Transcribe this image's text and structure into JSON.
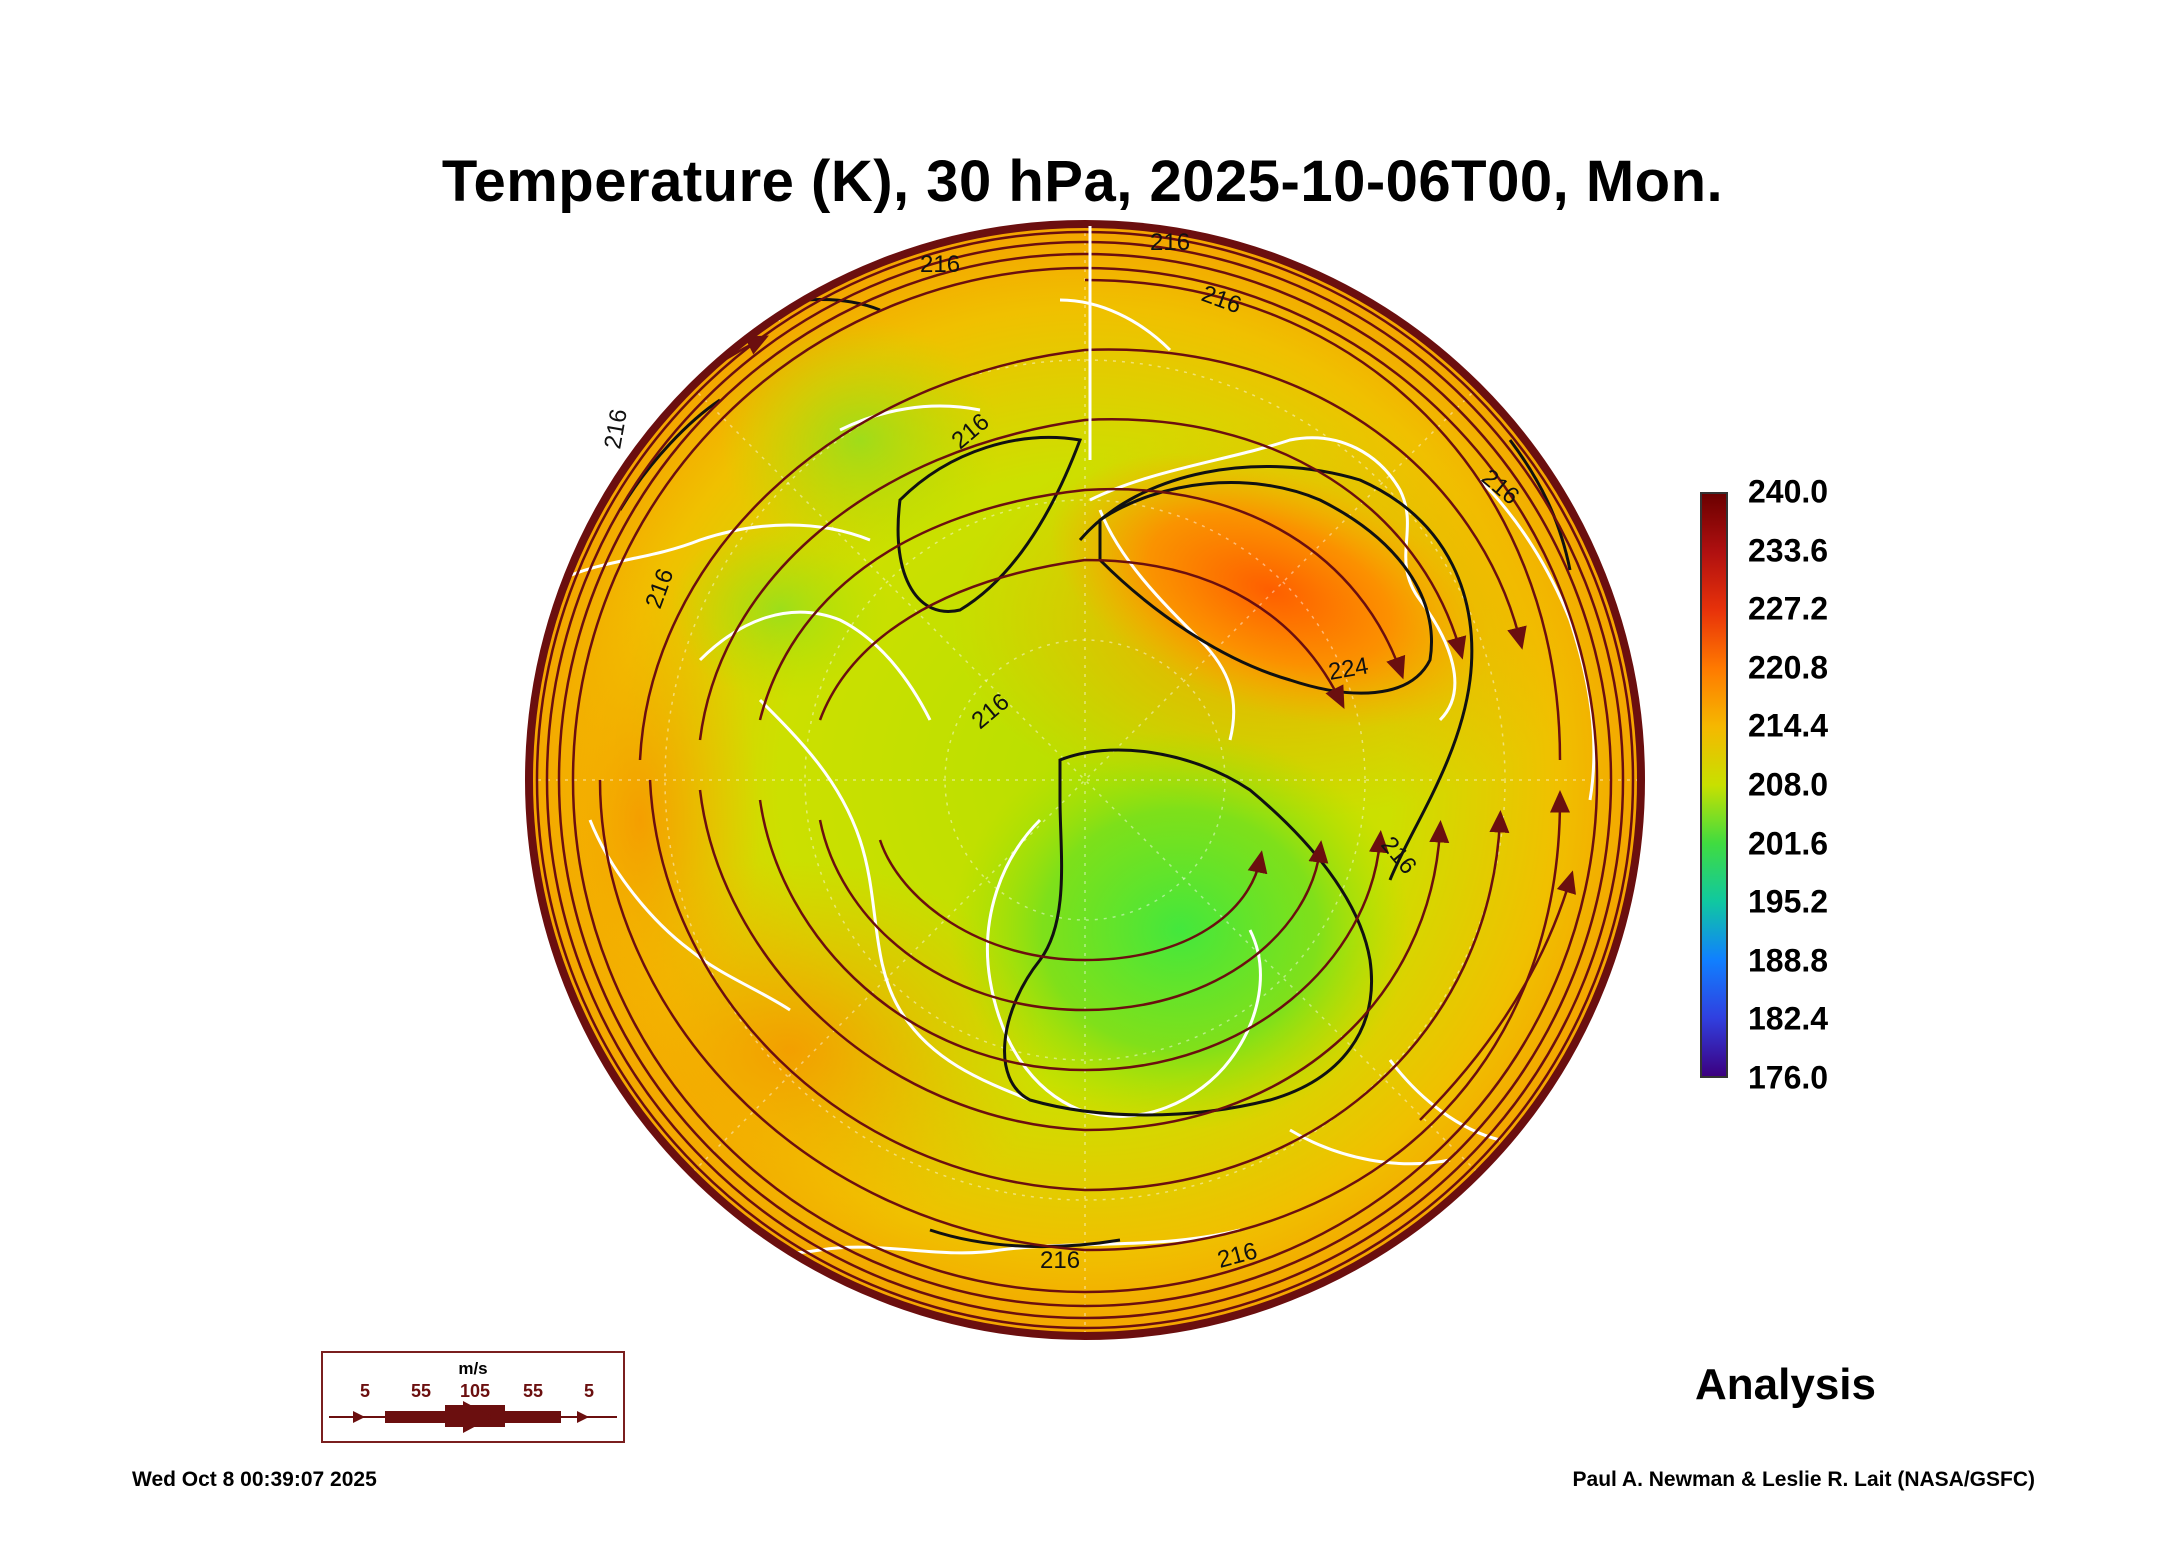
{
  "title": "Temperature (K), 30 hPa, 2025-10-06T00, Mon.",
  "map": {
    "projection": "north-polar-stereographic",
    "contour_labels": [
      "216",
      "216",
      "216",
      "216",
      "216",
      "216",
      "216",
      "216",
      "216",
      "216",
      "224",
      "216"
    ]
  },
  "colorbar": {
    "labels": [
      "240.0",
      "233.6",
      "227.2",
      "220.8",
      "214.4",
      "208.0",
      "201.6",
      "195.2",
      "188.8",
      "182.4",
      "176.0"
    ],
    "colors": [
      "#6b0000",
      "#b01010",
      "#e8320a",
      "#ff7a00",
      "#f5b800",
      "#c8e000",
      "#40dc40",
      "#10c8a0",
      "#1080ff",
      "#3040e0",
      "#3c0080"
    ]
  },
  "wind_legend": {
    "unit": "m/s",
    "values": [
      "5",
      "55",
      "105",
      "55",
      "5"
    ]
  },
  "analysis_label": "Analysis",
  "footer": {
    "timestamp": "Wed Oct  8 00:39:07 2025",
    "credit": "Paul A. Newman & Leslie R. Lait (NASA/GSFC)"
  }
}
